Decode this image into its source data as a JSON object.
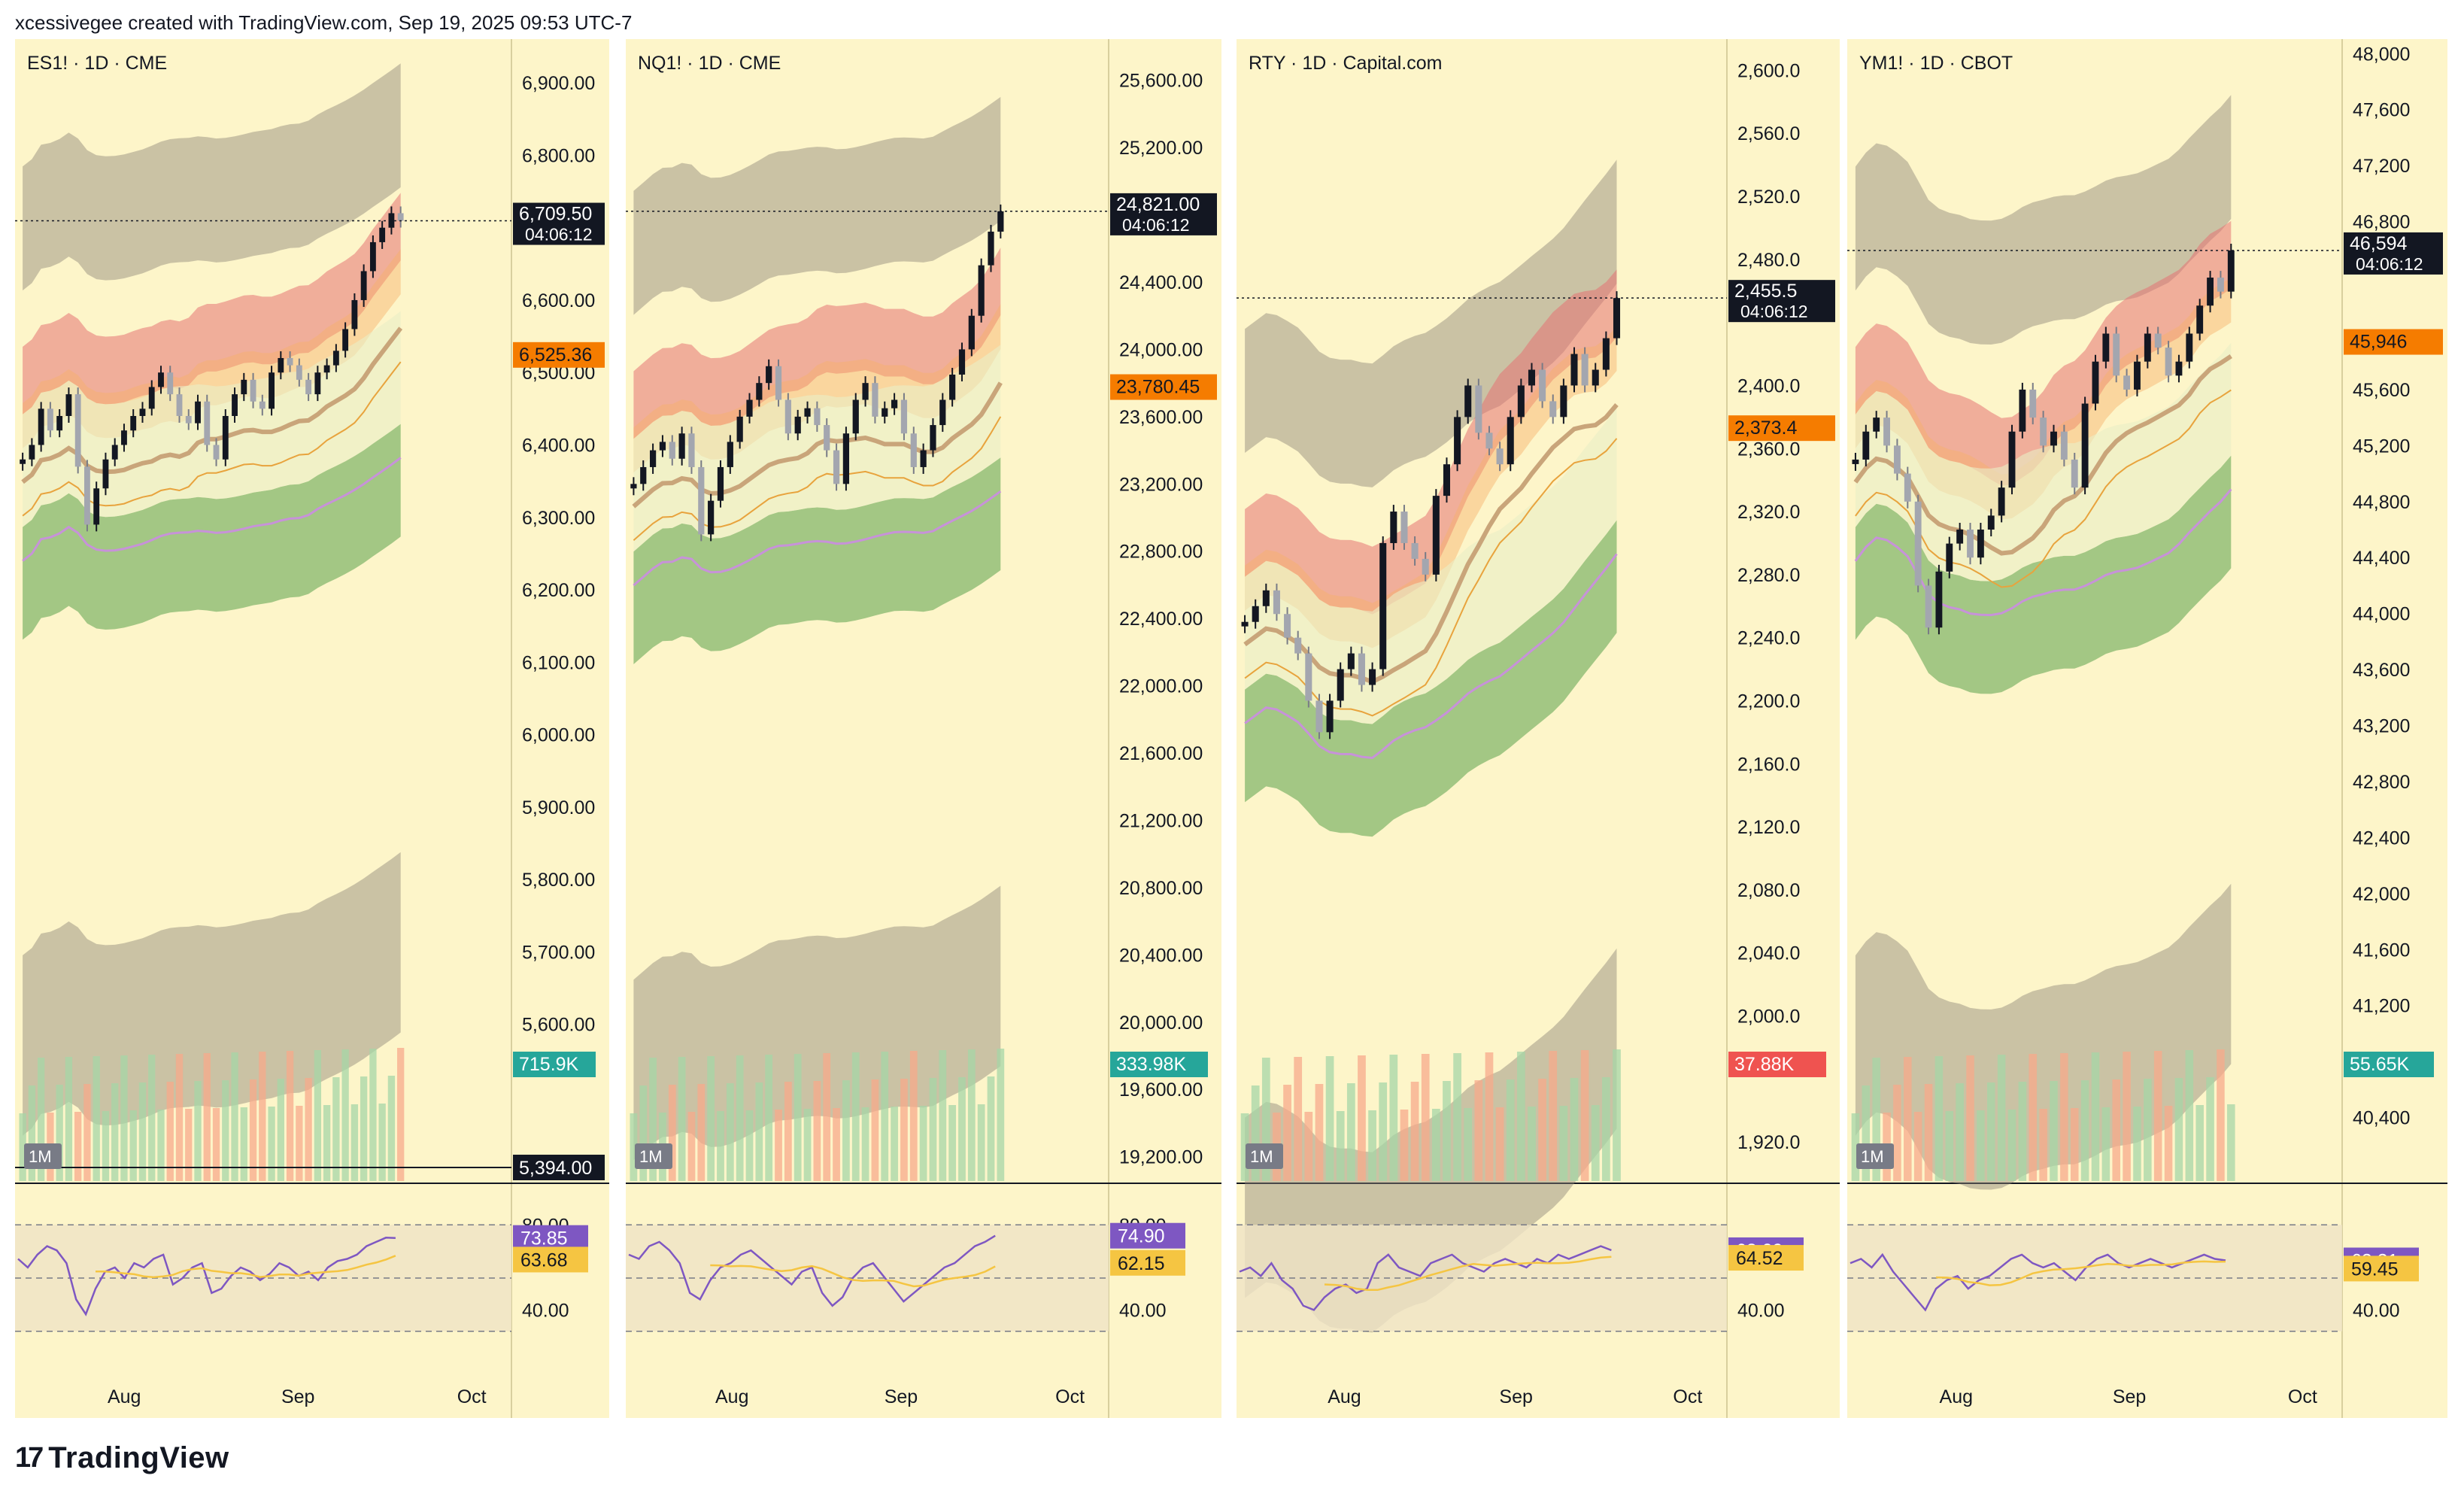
{
  "header": {
    "caption": "xcessivegee created with TradingView.com, Sep 19, 2025 09:53 UTC-7"
  },
  "footer": {
    "brand": "TradingView"
  },
  "colors": {
    "background": "#fdf5c9",
    "up_candle": "#131722",
    "ribbon_red": "#e57373",
    "ribbon_orange": "#f6b26b",
    "ribbon_green": "#5aa14b",
    "ribbon_gray": "#8c8677",
    "ma_purple": "#c792d9",
    "ma_orange": "#e8a33d",
    "volume_up": "#a5d6a7",
    "volume_down": "#f7a98b",
    "rsi_line": "#7e57c2",
    "rsi_ma": "#f5c542",
    "rsi_band": "#efe3c6"
  },
  "chart_data": [
    {
      "type": "candlestick",
      "symbol": "ES1! · 1D · CME",
      "timeframe_badge": "1M",
      "price_ticks": [
        "6,900.00",
        "6,800.00",
        "6,700.00",
        "6,600.00",
        "6,500.00",
        "6,400.00",
        "6,300.00",
        "6,200.00",
        "6,100.00",
        "6,000.00",
        "5,900.00",
        "5,800.00",
        "5,700.00",
        "5,600.00"
      ],
      "ylim": [
        5394,
        6950
      ],
      "x_ticks": [
        "Aug",
        "Sep",
        "Oct"
      ],
      "close": [
        6380,
        6400,
        6450,
        6420,
        6440,
        6470,
        6370,
        6290,
        6340,
        6380,
        6400,
        6420,
        6440,
        6450,
        6480,
        6500,
        6470,
        6440,
        6430,
        6460,
        6400,
        6380,
        6440,
        6470,
        6490,
        6460,
        6450,
        6500,
        6520,
        6510,
        6490,
        6470,
        6500,
        6510,
        6530,
        6560,
        6600,
        6640,
        6680,
        6700,
        6720,
        6709.5
      ],
      "last_price_label": "6,709.50",
      "countdown": "04:06:12",
      "ma_label": "6,525.36",
      "volume_label": "715.9K",
      "bottom_label": "5,394.00",
      "rsi": {
        "value": "73.85",
        "ma": "63.68",
        "ticks": [
          "80.00",
          "40.00"
        ],
        "series": [
          64,
          60,
          66,
          70,
          68,
          62,
          45,
          38,
          50,
          58,
          60,
          55,
          62,
          60,
          64,
          66,
          52,
          55,
          60,
          62,
          48,
          50,
          56,
          60,
          58,
          54,
          57,
          62,
          60,
          56,
          58,
          54,
          60,
          63,
          64,
          66,
          70,
          72,
          74,
          73.85
        ]
      }
    },
    {
      "type": "candlestick",
      "symbol": "NQ1! · 1D · CME",
      "timeframe_badge": "1M",
      "price_ticks": [
        "25,600.00",
        "25,200.00",
        "24,400.00",
        "24,000.00",
        "23,600.00",
        "23,200.00",
        "22,800.00",
        "22,400.00",
        "22,000.00",
        "21,600.00",
        "21,200.00",
        "20,800.00",
        "20,400.00",
        "20,000.00",
        "19,600.00",
        "19,200.00"
      ],
      "ylim": [
        19100,
        25800
      ],
      "x_ticks": [
        "Aug",
        "Sep",
        "Oct"
      ],
      "close": [
        23200,
        23300,
        23400,
        23450,
        23350,
        23500,
        23300,
        22900,
        23100,
        23300,
        23450,
        23600,
        23700,
        23800,
        23900,
        23700,
        23500,
        23600,
        23650,
        23550,
        23400,
        23200,
        23500,
        23700,
        23800,
        23600,
        23650,
        23700,
        23500,
        23300,
        23400,
        23550,
        23700,
        23850,
        24000,
        24200,
        24500,
        24700,
        24821
      ],
      "last_price_label": "24,821.00",
      "countdown": "04:06:12",
      "ma_label": "23,780.45",
      "volume_label": "333.98K",
      "rsi": {
        "value": "74.90",
        "ma": "62.15",
        "ticks": [
          "80.00",
          "40.00"
        ],
        "series": [
          66,
          64,
          70,
          72,
          68,
          62,
          48,
          45,
          54,
          60,
          62,
          66,
          68,
          64,
          60,
          56,
          52,
          58,
          60,
          48,
          42,
          46,
          55,
          60,
          62,
          56,
          50,
          44,
          48,
          52,
          56,
          60,
          62,
          66,
          70,
          72,
          74.9
        ]
      }
    },
    {
      "type": "candlestick",
      "symbol": "RTY · 1D · Capital.com",
      "timeframe_badge": "1M",
      "price_ticks": [
        "2,600.0",
        "2,560.0",
        "2,520.0",
        "2,480.0",
        "2,400.0",
        "2,360.0",
        "2,320.0",
        "2,280.0",
        "2,240.0",
        "2,200.0",
        "2,160.0",
        "2,120.0",
        "2,080.0",
        "2,040.0",
        "2,000.0",
        "1,920.0"
      ],
      "ylim": [
        1900,
        2615
      ],
      "x_ticks": [
        "Aug",
        "Sep",
        "Oct"
      ],
      "close": [
        2250,
        2260,
        2270,
        2255,
        2240,
        2230,
        2200,
        2180,
        2200,
        2220,
        2230,
        2210,
        2220,
        2300,
        2320,
        2300,
        2290,
        2280,
        2330,
        2350,
        2380,
        2400,
        2370,
        2360,
        2350,
        2380,
        2400,
        2410,
        2390,
        2380,
        2400,
        2420,
        2400,
        2410,
        2430,
        2455.5
      ],
      "last_price_label": "2,455.5",
      "countdown": "04:06:12",
      "ma_label": "2,373.4",
      "volume_label": "37.88K",
      "rsi": {
        "value": "68.09",
        "ma": "64.52",
        "ticks": [
          "40.00"
        ],
        "series": [
          58,
          60,
          56,
          62,
          54,
          50,
          42,
          40,
          46,
          50,
          52,
          48,
          50,
          62,
          66,
          60,
          58,
          56,
          62,
          64,
          66,
          62,
          60,
          58,
          62,
          64,
          62,
          60,
          64,
          62,
          66,
          64,
          66,
          68,
          70,
          68.09
        ]
      }
    },
    {
      "type": "candlestick",
      "symbol": "YM1! · 1D · CBOT",
      "timeframe_badge": "1M",
      "price_ticks": [
        "48,000",
        "47,600",
        "47,200",
        "46,800",
        "45,600",
        "45,200",
        "44,800",
        "44,400",
        "44,000",
        "43,600",
        "43,200",
        "42,800",
        "42,400",
        "42,000",
        "41,600",
        "41,200",
        "40,400"
      ],
      "ylim": [
        40000,
        48050
      ],
      "x_ticks": [
        "Aug",
        "Sep",
        "Oct"
      ],
      "close": [
        45100,
        45300,
        45400,
        45200,
        45000,
        44800,
        44200,
        43900,
        44300,
        44500,
        44600,
        44400,
        44600,
        44700,
        44900,
        45300,
        45600,
        45400,
        45200,
        45300,
        45100,
        44900,
        45500,
        45800,
        46000,
        45700,
        45600,
        45800,
        46000,
        45900,
        45700,
        45800,
        46000,
        46200,
        46400,
        46300,
        46594
      ],
      "last_price_label": "46,594",
      "countdown": "04:06:12",
      "ma_label": "45,946",
      "volume_label": "55.65K",
      "rsi": {
        "value": "63.31",
        "ma": "59.45",
        "ticks": [
          "40.00"
        ],
        "series": [
          62,
          64,
          60,
          66,
          58,
          52,
          46,
          40,
          50,
          54,
          56,
          50,
          54,
          56,
          60,
          64,
          66,
          62,
          60,
          62,
          58,
          54,
          60,
          64,
          66,
          62,
          60,
          62,
          64,
          62,
          60,
          62,
          64,
          66,
          64,
          63.31
        ]
      }
    }
  ]
}
